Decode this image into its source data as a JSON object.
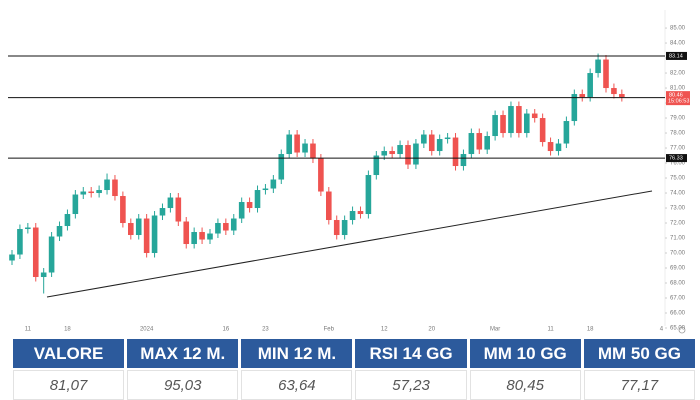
{
  "chart_data": {
    "type": "candlestick",
    "categories": [
      null,
      null,
      "11",
      null,
      null,
      null,
      null,
      "18",
      null,
      null,
      null,
      null,
      null,
      null,
      null,
      null,
      null,
      "2024",
      null,
      null,
      null,
      null,
      null,
      null,
      null,
      null,
      null,
      "16",
      null,
      null,
      null,
      null,
      "23",
      null,
      null,
      null,
      null,
      null,
      null,
      null,
      "Feb",
      null,
      null,
      null,
      null,
      null,
      null,
      "12",
      null,
      null,
      null,
      null,
      null,
      "20",
      null,
      null,
      null,
      null,
      null,
      null,
      null,
      "Mar",
      null,
      null,
      null,
      null,
      null,
      null,
      "11",
      null,
      null,
      null,
      null,
      "18",
      null,
      null,
      null,
      null,
      null,
      null,
      null,
      null,
      "4"
    ],
    "open": [
      69.5,
      69.9,
      71.6,
      71.7,
      68.4,
      68.7,
      71.1,
      71.8,
      72.6,
      73.9,
      74.1,
      74.0,
      74.2,
      74.9,
      73.8,
      72.0,
      71.2,
      72.3,
      70.0,
      72.5,
      73.0,
      73.7,
      72.1,
      70.6,
      71.4,
      70.9,
      71.3,
      72.0,
      71.5,
      72.3,
      73.4,
      73.0,
      74.2,
      74.3,
      74.9,
      76.6,
      77.9,
      76.7,
      77.3,
      76.3,
      74.1,
      72.2,
      71.2,
      72.2,
      72.8,
      72.6,
      75.2,
      76.5,
      76.8,
      76.6,
      77.2,
      75.9,
      77.3,
      77.9,
      76.8,
      77.6,
      77.7,
      75.8,
      76.6,
      78.0,
      76.9,
      77.8,
      79.2,
      78.0,
      79.8,
      78.0,
      79.3,
      79.0,
      77.4,
      76.8,
      77.3,
      78.8,
      80.6,
      80.4,
      82.0,
      82.9,
      81.0,
      80.6,
      null,
      null,
      null,
      null,
      null
    ],
    "high": [
      70.2,
      71.9,
      72.0,
      72.0,
      69.0,
      71.4,
      72.1,
      72.9,
      74.2,
      74.4,
      74.4,
      74.5,
      75.3,
      75.2,
      74.1,
      72.3,
      72.6,
      72.6,
      72.8,
      73.3,
      74.0,
      74.0,
      72.4,
      71.7,
      71.7,
      71.6,
      72.3,
      72.3,
      72.6,
      73.7,
      73.7,
      74.5,
      74.6,
      75.2,
      76.9,
      78.2,
      78.2,
      77.6,
      77.6,
      76.6,
      74.4,
      72.5,
      72.5,
      73.1,
      73.1,
      75.5,
      76.8,
      77.1,
      77.1,
      77.5,
      77.5,
      77.6,
      78.2,
      78.2,
      77.9,
      78.0,
      78.0,
      76.9,
      78.3,
      78.3,
      78.1,
      79.5,
      79.5,
      80.1,
      80.1,
      79.6,
      79.6,
      79.3,
      77.7,
      77.6,
      79.1,
      80.9,
      80.9,
      82.3,
      83.3,
      83.2,
      81.3,
      80.9,
      null,
      null,
      null,
      null,
      null
    ],
    "low": [
      69.2,
      69.6,
      71.3,
      68.1,
      67.3,
      68.4,
      70.8,
      71.5,
      72.3,
      73.6,
      73.7,
      73.7,
      73.9,
      73.5,
      71.7,
      70.9,
      70.9,
      69.7,
      69.7,
      72.2,
      72.7,
      71.8,
      70.3,
      70.3,
      70.6,
      70.6,
      71.0,
      71.2,
      71.2,
      72.0,
      72.7,
      72.7,
      73.9,
      74.0,
      74.6,
      76.3,
      76.4,
      76.4,
      76.0,
      73.8,
      71.9,
      70.9,
      70.9,
      71.9,
      72.3,
      72.3,
      74.9,
      76.2,
      76.3,
      76.3,
      75.6,
      75.6,
      77.0,
      76.5,
      76.5,
      77.3,
      75.5,
      75.5,
      76.3,
      76.6,
      76.6,
      77.5,
      77.7,
      77.7,
      77.7,
      77.7,
      78.7,
      77.1,
      76.5,
      76.5,
      77.0,
      78.5,
      80.1,
      80.1,
      81.7,
      80.7,
      80.3,
      80.1,
      null,
      null,
      null,
      null,
      null
    ],
    "close": [
      69.9,
      71.6,
      71.7,
      68.4,
      68.7,
      71.1,
      71.8,
      72.6,
      73.9,
      74.1,
      74.0,
      74.2,
      74.9,
      73.8,
      72.0,
      71.2,
      72.3,
      70.0,
      72.5,
      73.0,
      73.7,
      72.1,
      70.6,
      71.4,
      70.9,
      71.3,
      72.0,
      71.5,
      72.3,
      73.4,
      73.0,
      74.2,
      74.3,
      74.9,
      76.6,
      77.9,
      76.7,
      77.3,
      76.3,
      74.1,
      72.2,
      71.2,
      72.2,
      72.8,
      72.6,
      75.2,
      76.5,
      76.8,
      76.6,
      77.2,
      75.9,
      77.3,
      77.9,
      76.8,
      77.6,
      77.7,
      75.8,
      76.6,
      78.0,
      76.9,
      77.8,
      79.2,
      78.0,
      79.8,
      78.0,
      79.3,
      79.0,
      77.4,
      76.8,
      77.3,
      78.8,
      80.6,
      80.4,
      82.0,
      82.9,
      81.0,
      80.6,
      80.4,
      null,
      null,
      null,
      null,
      null
    ],
    "up_color": "#26a69a",
    "down_color": "#ef5350",
    "ylim": [
      65.4,
      85.67
    ],
    "yticks": [
      {
        "value": 65,
        "label": "65.00"
      },
      {
        "value": 66,
        "label": "66.00"
      },
      {
        "value": 67,
        "label": "67.00"
      },
      {
        "value": 68,
        "label": "68.00"
      },
      {
        "value": 69,
        "label": "69.00"
      },
      {
        "value": 70,
        "label": "70.00"
      },
      {
        "value": 71,
        "label": "71.00"
      },
      {
        "value": 72,
        "label": "72.00"
      },
      {
        "value": 73,
        "label": "73.00"
      },
      {
        "value": 74,
        "label": "74.00"
      },
      {
        "value": 75,
        "label": "75.00"
      },
      {
        "value": 76,
        "label": "76.00"
      },
      {
        "value": 77,
        "label": "77.00"
      },
      {
        "value": 78,
        "label": "78.00"
      },
      {
        "value": 79,
        "label": "79.00"
      },
      {
        "value": 80,
        "label": "80.00"
      },
      {
        "value": 81,
        "label": "81.00"
      },
      {
        "value": 82,
        "label": "82.00"
      },
      {
        "value": 83,
        "label": "83.00"
      },
      {
        "value": 84,
        "label": "84.00"
      },
      {
        "value": 85,
        "label": "85.00"
      }
    ],
    "levels": [
      83.14,
      80.36,
      76.33
    ],
    "last_price": 80.46,
    "last_time": "15:06:53",
    "last_color": "#ef5350"
  },
  "table": {
    "header": [
      "VALORE",
      "MAX 12 M.",
      "MIN 12 M.",
      "RSI 14 GG",
      "MM 10 GG",
      "MM 50 GG"
    ],
    "rows": [
      [
        "81,07",
        "95,03",
        "63,64",
        "57,23",
        "80,45",
        "77,17"
      ]
    ]
  }
}
